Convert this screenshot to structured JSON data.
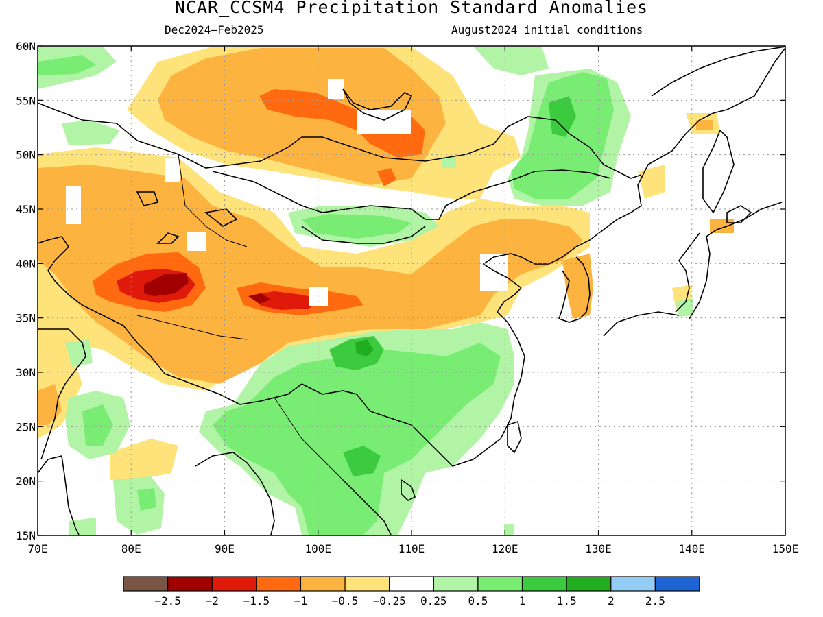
{
  "title": "NCAR_CCSM4 Precipitation Standard Anomalies",
  "period": "Dec2024–Feb2025",
  "init": "August2024 initial conditions",
  "lat_labels": [
    "60N",
    "55N",
    "50N",
    "45N",
    "40N",
    "35N",
    "30N",
    "25N",
    "20N",
    "15N"
  ],
  "lon_labels": [
    "70E",
    "80E",
    "90E",
    "100E",
    "110E",
    "120E",
    "130E",
    "140E",
    "150E"
  ],
  "map_extent": {
    "lon": [
      70,
      150
    ],
    "lat": [
      15,
      60
    ]
  },
  "legend": {
    "colors": [
      "#7a5546",
      "#a00000",
      "#e01a0a",
      "#ff6a10",
      "#fdb340",
      "#fee27a",
      "#ffffff",
      "#b2f4a6",
      "#79ec74",
      "#3ccb3e",
      "#20ae20",
      "#93ccf4",
      "#1e64d2"
    ],
    "labels": [
      "−2.5",
      "−2",
      "−1.5",
      "−1",
      "−0.5",
      "−0.25",
      "0.25",
      "0.5",
      "1",
      "1.5",
      "2",
      "2.5"
    ]
  }
}
